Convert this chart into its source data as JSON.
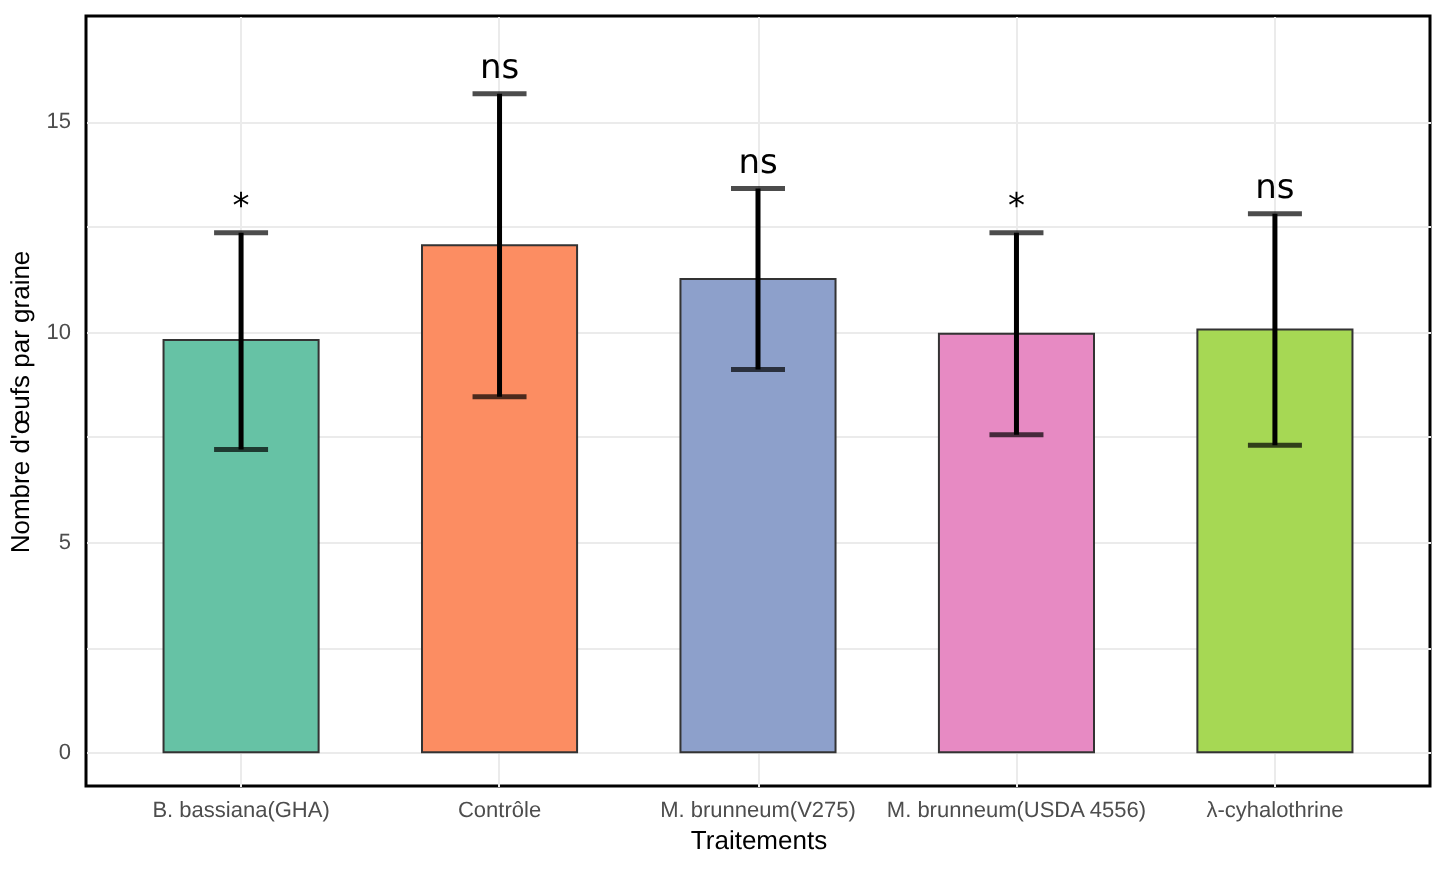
{
  "chart_data": {
    "type": "bar",
    "xlabel": "Traitements",
    "ylabel": "Nombre d'œufs par graine",
    "categories": [
      "B. bassiana(GHA)",
      "Contrôle",
      "M. brunneum(V275)",
      "M. brunneum(USDA 4556)",
      "λ-cyhalothrine"
    ],
    "values": [
      9.8,
      12.05,
      11.25,
      9.95,
      10.05
    ],
    "colors": [
      "#66c2a5",
      "#fc8d62",
      "#8da0cb",
      "#e78ac3",
      "#a6d854"
    ],
    "errors": [
      [
        7.2,
        12.35
      ],
      [
        8.45,
        15.65
      ],
      [
        9.1,
        13.4
      ],
      [
        7.55,
        12.35
      ],
      [
        7.3,
        12.8
      ]
    ],
    "ylim": [
      -0.8,
      17.5
    ],
    "yticks": [
      0,
      {
        "value": 2.5,
        "label": null
      },
      5,
      {
        "value": 7.5,
        "label": null
      },
      10,
      {
        "value": 12.5,
        "label": null
      },
      15
    ],
    "grid": true,
    "annotations": [
      "*",
      "ns",
      "ns",
      "*",
      "ns"
    ]
  }
}
